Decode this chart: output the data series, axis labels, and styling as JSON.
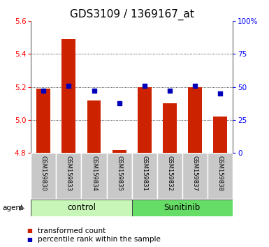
{
  "title": "GDS3109 / 1369167_at",
  "samples": [
    "GSM159830",
    "GSM159833",
    "GSM159834",
    "GSM159835",
    "GSM159831",
    "GSM159832",
    "GSM159837",
    "GSM159838"
  ],
  "red_values": [
    5.19,
    5.49,
    5.12,
    4.82,
    5.2,
    5.1,
    5.2,
    5.02
  ],
  "blue_values": [
    47,
    51,
    47,
    38,
    51,
    47,
    51,
    45
  ],
  "groups": [
    {
      "label": "control",
      "indices": [
        0,
        1,
        2,
        3
      ],
      "color": "#c8f5b8"
    },
    {
      "label": "Sunitinib",
      "indices": [
        4,
        5,
        6,
        7
      ],
      "color": "#66dd66"
    }
  ],
  "ylim_left": [
    4.8,
    5.6
  ],
  "ylim_right": [
    0,
    100
  ],
  "yticks_left": [
    4.8,
    5.0,
    5.2,
    5.4,
    5.6
  ],
  "yticks_right": [
    0,
    25,
    50,
    75,
    100
  ],
  "ytick_labels_right": [
    "0",
    "25",
    "50",
    "75",
    "100%"
  ],
  "bar_color": "#cc2200",
  "dot_color": "#0000bb",
  "bar_width": 0.55,
  "bar_baseline": 4.8,
  "legend_labels": [
    "transformed count",
    "percentile rank within the sample"
  ],
  "agent_label": "agent",
  "title_fontsize": 11,
  "tick_fontsize": 7.5,
  "sample_fontsize": 6,
  "group_label_fontsize": 8.5,
  "legend_fontsize": 7.5,
  "grid_lines": [
    5.0,
    5.2,
    5.4
  ],
  "cell_color": "#c8c8c8",
  "cell_edge_color": "#ffffff"
}
